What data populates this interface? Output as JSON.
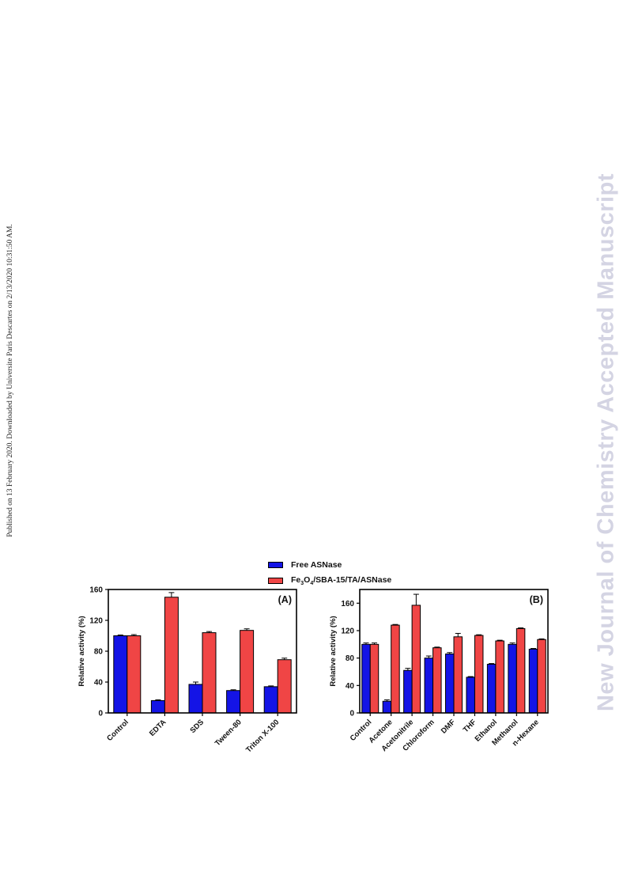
{
  "side_note": "Published on 13 February 2020. Downloaded by Universite Paris Descartes on 2/13/2020 10:31:50 AM.",
  "watermark": "New Journal of Chemistry Accepted Manuscript",
  "colors": {
    "free": "#1414e6",
    "immobilized": "#f04545",
    "watermark": "#d4d4e3"
  },
  "legend": {
    "free_label": "Free ASNase",
    "immobilized_label_parts": [
      "Fe",
      "3",
      "O",
      "4",
      "/SBA-15/TA/ASNase"
    ]
  },
  "chart_data": [
    {
      "type": "bar",
      "panel_label": "(A)",
      "ylabel": "Relative activity (%)",
      "ylim": [
        0,
        160
      ],
      "yticks": [
        "0",
        "40",
        "80",
        "120",
        "160"
      ],
      "categories": [
        "Control",
        "EDTA",
        "SDS",
        "Tween-80",
        "Triton X-100"
      ],
      "series": [
        {
          "name": "Free ASNase",
          "values": [
            100,
            16,
            37,
            29,
            34
          ],
          "errors": [
            1,
            1,
            3,
            1,
            1
          ]
        },
        {
          "name": "Fe3O4/SBA-15/TA/ASNase",
          "values": [
            100,
            150,
            104,
            107,
            69
          ],
          "errors": [
            1.5,
            6,
            1.5,
            2,
            2
          ]
        }
      ]
    },
    {
      "type": "bar",
      "panel_label": "(B)",
      "ylabel": "Relative activity (%)",
      "ylim": [
        0,
        180
      ],
      "yticks": [
        "0",
        "40",
        "80",
        "120",
        "160"
      ],
      "categories": [
        "Control",
        "Acetone",
        "Acetonitrile",
        "Chloroform",
        "DMF",
        "THF",
        "Ethanol",
        "Methanol",
        "n-Hexane"
      ],
      "series": [
        {
          "name": "Free ASNase",
          "values": [
            100,
            17,
            62,
            80,
            86,
            52,
            71,
            100,
            93
          ],
          "errors": [
            2,
            2,
            3,
            3,
            2,
            1,
            1,
            2,
            1
          ]
        },
        {
          "name": "Fe3O4/SBA-15/TA/ASNase",
          "values": [
            100,
            128,
            157,
            95,
            111,
            113,
            105,
            123,
            107
          ],
          "errors": [
            2,
            1,
            16,
            1,
            5,
            1,
            1,
            1,
            1
          ]
        }
      ]
    }
  ]
}
